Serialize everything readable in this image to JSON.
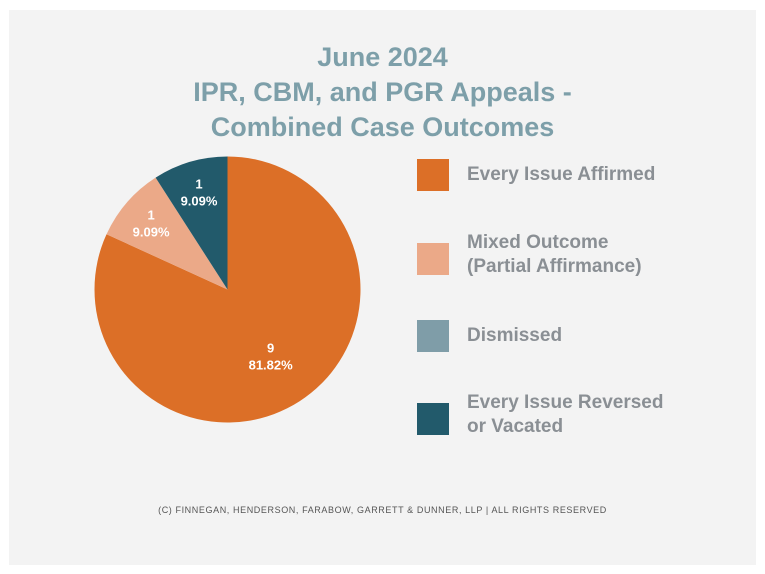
{
  "chart_data": {
    "type": "pie",
    "title_lines": [
      "June 2024",
      "IPR, CBM, and PGR Appeals -",
      "Combined Case Outcomes"
    ],
    "slices": [
      {
        "name": "Every Issue Affirmed",
        "value": 9,
        "percent": "81.82%",
        "color": "#dc6f27"
      },
      {
        "name": "Mixed Outcome (Partial Affirmance)",
        "value": 1,
        "percent": "9.09%",
        "color": "#eba988"
      },
      {
        "name": "Dismissed",
        "value": 0,
        "percent": "",
        "color": "#7f9da8"
      },
      {
        "name": "Every Issue Reversed or Vacated",
        "value": 1,
        "percent": "9.09%",
        "color": "#225a6b"
      }
    ],
    "legend": [
      {
        "label": "Every Issue Affirmed",
        "color": "#dc6f27"
      },
      {
        "label": "Mixed Outcome\n(Partial Affirmance)",
        "color": "#eba988"
      },
      {
        "label": "Dismissed",
        "color": "#7f9da8"
      },
      {
        "label": "Every Issue Reversed\nor Vacated",
        "color": "#225a6b"
      }
    ],
    "legend_position": "right"
  },
  "footer": "(C) FINNEGAN, HENDERSON, FARABOW, GARRETT & DUNNER, LLP | ALL RIGHTS RESERVED"
}
